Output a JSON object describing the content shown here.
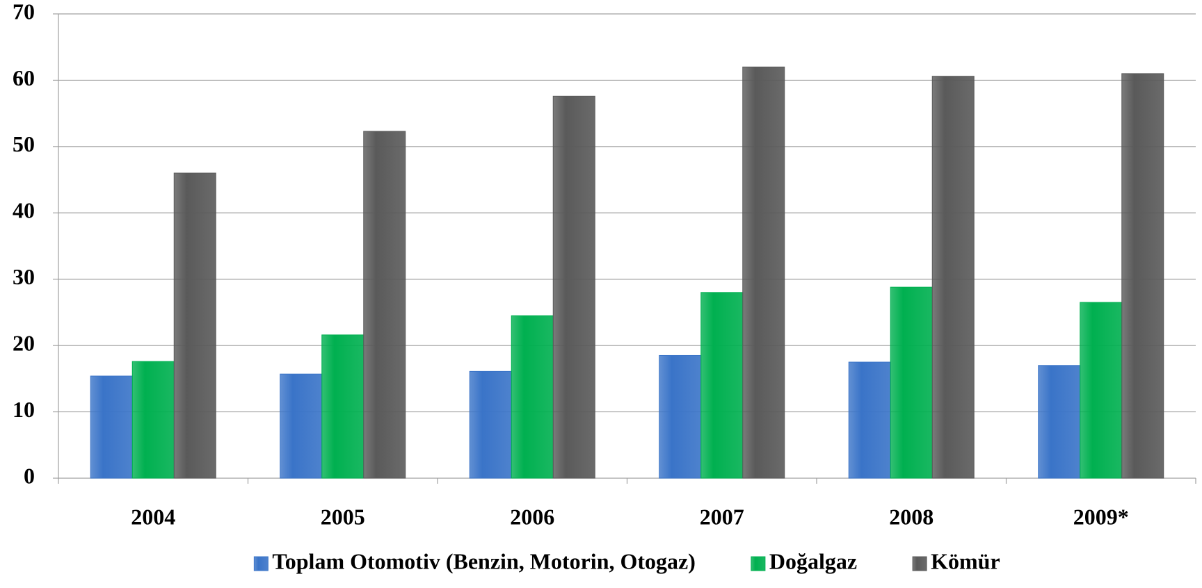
{
  "chart_data": {
    "type": "bar",
    "categories": [
      "2004",
      "2005",
      "2006",
      "2007",
      "2008",
      "2009*"
    ],
    "series": [
      {
        "name": "Toplam Otomotiv (Benzin, Motorin, Otogaz)",
        "color": "#3a74c8",
        "values": [
          15.4,
          15.7,
          16.1,
          18.5,
          17.5,
          17.0
        ]
      },
      {
        "name": "Doğalgaz",
        "color": "#00b050",
        "values": [
          17.6,
          21.6,
          24.5,
          28.0,
          28.8,
          26.5
        ]
      },
      {
        "name": "Kömür",
        "color": "#5a5a5a",
        "values": [
          46.0,
          52.3,
          57.6,
          62.0,
          60.6,
          61.0
        ]
      }
    ],
    "ylim": [
      0,
      70
    ],
    "yticks": [
      0,
      10,
      20,
      30,
      40,
      50,
      60,
      70
    ],
    "grid": true,
    "legend": "bottom"
  }
}
